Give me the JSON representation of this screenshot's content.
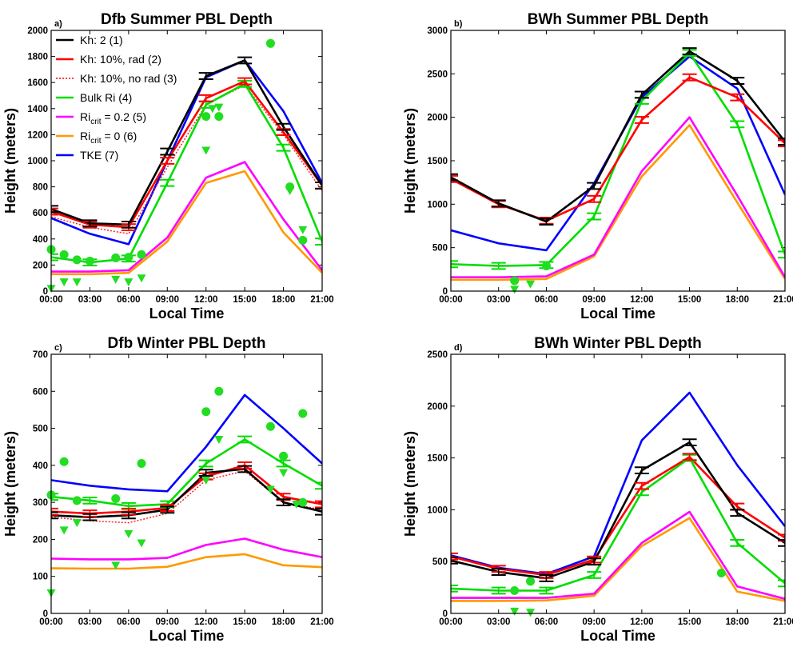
{
  "figure": {
    "xlabel": "Local Time",
    "ylabel": "Height (meters)"
  },
  "legend": [
    {
      "label": "Kh: 2 (1)",
      "color": "#000000",
      "style": "solid"
    },
    {
      "label": "Kh: 10%, rad (2)",
      "color": "#ff0000",
      "style": "solid"
    },
    {
      "label": "Kh: 10%, no rad (3)",
      "color": "#ff0000",
      "style": "dotted"
    },
    {
      "label": "Bulk Ri (4)",
      "color": "#00dd00",
      "style": "solid"
    },
    {
      "label": "Ri",
      "sub": "crit",
      "suffix": " = 0.2 (5)",
      "color": "#ff00ff",
      "style": "solid"
    },
    {
      "label": "Ri",
      "sub": "crit",
      "suffix": " = 0 (6)",
      "color": "#ff9900",
      "style": "solid"
    },
    {
      "label": "TKE (7)",
      "color": "#0000ff",
      "style": "solid"
    }
  ],
  "chart_data": [
    {
      "panel": "a)",
      "title": "Dfb Summer PBL Depth",
      "type": "line",
      "xticks": [
        "00:00",
        "03:00",
        "06:00",
        "09:00",
        "12:00",
        "15:00",
        "18:00",
        "21:00"
      ],
      "xlim": [
        0,
        21
      ],
      "ylim": [
        0,
        2000
      ],
      "yticks": [
        0,
        200,
        400,
        600,
        800,
        1000,
        1200,
        1400,
        1600,
        1800,
        2000
      ],
      "series": [
        {
          "id": "kh2",
          "x": [
            0,
            3,
            6,
            9,
            12,
            15,
            18,
            21
          ],
          "values": [
            630,
            520,
            510,
            1070,
            1650,
            1770,
            1260,
            810
          ],
          "err": true
        },
        {
          "id": "kh10rad",
          "x": [
            0,
            3,
            6,
            9,
            12,
            15,
            18,
            21
          ],
          "values": [
            610,
            510,
            490,
            1000,
            1480,
            1610,
            1220,
            810
          ],
          "err": true
        },
        {
          "id": "kh10norad",
          "x": [
            0,
            3,
            6,
            9,
            12,
            15,
            18,
            21
          ],
          "values": [
            570,
            490,
            440,
            950,
            1430,
            1580,
            1200,
            770
          ],
          "err": false
        },
        {
          "id": "bulkri",
          "x": [
            0,
            3,
            6,
            9,
            12,
            15,
            18,
            21
          ],
          "values": [
            260,
            220,
            250,
            830,
            1430,
            1590,
            1100,
            380
          ],
          "err": true
        },
        {
          "id": "ri02",
          "x": [
            0,
            3,
            6,
            9,
            12,
            15,
            18,
            21
          ],
          "values": [
            150,
            150,
            160,
            410,
            870,
            990,
            550,
            160
          ],
          "err": false
        },
        {
          "id": "ri0",
          "x": [
            0,
            3,
            6,
            9,
            12,
            15,
            18,
            21
          ],
          "values": [
            130,
            130,
            140,
            380,
            830,
            920,
            450,
            140
          ],
          "err": false
        },
        {
          "id": "tke",
          "x": [
            0,
            3,
            6,
            9,
            12,
            15,
            18,
            21
          ],
          "values": [
            560,
            440,
            360,
            1000,
            1640,
            1770,
            1380,
            830
          ],
          "err": false
        }
      ],
      "circles": [
        [
          0,
          320
        ],
        [
          1,
          280
        ],
        [
          2,
          240
        ],
        [
          3,
          230
        ],
        [
          5,
          255
        ],
        [
          6,
          260
        ],
        [
          7,
          280
        ],
        [
          12,
          1340
        ],
        [
          13,
          1340
        ],
        [
          17,
          1900
        ],
        [
          18.5,
          800
        ],
        [
          19.5,
          390
        ]
      ],
      "triangles": [
        [
          0,
          20
        ],
        [
          1,
          70
        ],
        [
          2,
          70
        ],
        [
          5,
          90
        ],
        [
          6,
          70
        ],
        [
          7,
          100
        ],
        [
          12,
          1080
        ],
        [
          12.5,
          1400
        ],
        [
          13,
          1410
        ],
        [
          18.5,
          770
        ],
        [
          19.5,
          470
        ]
      ]
    },
    {
      "panel": "b)",
      "title": "BWh Summer PBL Depth",
      "type": "line",
      "xticks": [
        "00:00",
        "03:00",
        "06:00",
        "09:00",
        "12:00",
        "15:00",
        "18:00",
        "21:00"
      ],
      "xlim": [
        0,
        21
      ],
      "ylim": [
        0,
        3000
      ],
      "yticks": [
        0,
        500,
        1000,
        1500,
        2000,
        2500,
        3000
      ],
      "series": [
        {
          "id": "kh2",
          "x": [
            0,
            3,
            6,
            9,
            12,
            15,
            18,
            21
          ],
          "values": [
            1310,
            1010,
            800,
            1210,
            2260,
            2760,
            2420,
            1720
          ],
          "err": true
        },
        {
          "id": "kh10rad",
          "x": [
            0,
            3,
            6,
            9,
            12,
            15,
            18,
            21
          ],
          "values": [
            1290,
            1000,
            810,
            1060,
            1970,
            2460,
            2230,
            1700
          ],
          "err": true
        },
        {
          "id": "bulkri",
          "x": [
            0,
            3,
            6,
            9,
            12,
            15,
            18,
            21
          ],
          "values": [
            310,
            290,
            300,
            860,
            2190,
            2740,
            1920,
            420
          ],
          "err": true
        },
        {
          "id": "ri02",
          "x": [
            0,
            3,
            6,
            9,
            12,
            15,
            18,
            21
          ],
          "values": [
            160,
            160,
            170,
            420,
            1380,
            2000,
            1100,
            160
          ],
          "err": false
        },
        {
          "id": "ri0",
          "x": [
            0,
            3,
            6,
            9,
            12,
            15,
            18,
            21
          ],
          "values": [
            130,
            130,
            140,
            400,
            1320,
            1910,
            1020,
            140
          ],
          "err": false
        },
        {
          "id": "tke",
          "x": [
            0,
            3,
            6,
            9,
            12,
            15,
            18,
            21
          ],
          "values": [
            700,
            550,
            470,
            1240,
            2230,
            2700,
            2330,
            1110
          ],
          "err": false
        }
      ],
      "circles": [
        [
          4,
          120
        ],
        [
          6,
          290
        ]
      ],
      "triangles": [
        [
          4,
          20
        ],
        [
          5,
          80
        ]
      ]
    },
    {
      "panel": "c)",
      "title": "Dfb Winter PBL Depth",
      "type": "line",
      "xticks": [
        "00:00",
        "03:00",
        "06:00",
        "09:00",
        "12:00",
        "15:00",
        "18:00",
        "21:00"
      ],
      "xlim": [
        0,
        21
      ],
      "ylim": [
        0,
        700
      ],
      "yticks": [
        0,
        100,
        200,
        300,
        400,
        500,
        600,
        700
      ],
      "series": [
        {
          "id": "kh2",
          "x": [
            0,
            3,
            6,
            9,
            12,
            15,
            18,
            21
          ],
          "values": [
            265,
            260,
            265,
            280,
            380,
            390,
            300,
            275
          ],
          "err": true
        },
        {
          "id": "kh10rad",
          "x": [
            0,
            3,
            6,
            9,
            12,
            15,
            18,
            21
          ],
          "values": [
            275,
            270,
            275,
            285,
            370,
            400,
            315,
            295
          ],
          "err": true
        },
        {
          "id": "kh10norad",
          "x": [
            0,
            3,
            6,
            9,
            12,
            15,
            18,
            21
          ],
          "values": [
            260,
            250,
            245,
            270,
            360,
            385,
            300,
            280
          ],
          "err": false
        },
        {
          "id": "bulkri",
          "x": [
            0,
            3,
            6,
            9,
            12,
            15,
            18,
            21
          ],
          "values": [
            315,
            305,
            290,
            295,
            405,
            470,
            405,
            345
          ],
          "err": true
        },
        {
          "id": "ri02",
          "x": [
            0,
            3,
            6,
            9,
            12,
            15,
            18,
            21
          ],
          "values": [
            148,
            146,
            146,
            150,
            185,
            202,
            172,
            152
          ],
          "err": false
        },
        {
          "id": "ri0",
          "x": [
            0,
            3,
            6,
            9,
            12,
            15,
            18,
            21
          ],
          "values": [
            122,
            121,
            121,
            126,
            152,
            160,
            130,
            125
          ],
          "err": false
        },
        {
          "id": "tke",
          "x": [
            0,
            3,
            6,
            9,
            12,
            15,
            18,
            21
          ],
          "values": [
            360,
            345,
            335,
            330,
            450,
            590,
            500,
            405
          ],
          "err": false
        }
      ],
      "circles": [
        [
          0,
          320
        ],
        [
          1,
          410
        ],
        [
          2,
          305
        ],
        [
          5,
          310
        ],
        [
          7,
          405
        ],
        [
          12,
          545
        ],
        [
          13,
          600
        ],
        [
          17,
          505
        ],
        [
          18,
          425
        ],
        [
          19.5,
          540
        ],
        [
          19.5,
          300
        ]
      ],
      "triangles": [
        [
          0,
          55
        ],
        [
          1,
          225
        ],
        [
          2,
          245
        ],
        [
          5,
          130
        ],
        [
          6,
          215
        ],
        [
          7,
          190
        ],
        [
          12,
          360
        ],
        [
          13,
          470
        ],
        [
          17,
          335
        ],
        [
          18,
          380
        ],
        [
          19,
          295
        ]
      ]
    },
    {
      "panel": "d)",
      "title": "BWh Winter PBL Depth",
      "type": "line",
      "xticks": [
        "00:00",
        "03:00",
        "06:00",
        "09:00",
        "12:00",
        "15:00",
        "18:00",
        "21:00"
      ],
      "xlim": [
        0,
        21
      ],
      "ylim": [
        0,
        2500
      ],
      "yticks": [
        0,
        500,
        1000,
        1500,
        2000,
        2500
      ],
      "series": [
        {
          "id": "kh2",
          "x": [
            0,
            3,
            6,
            9,
            12,
            15,
            18,
            21
          ],
          "values": [
            510,
            400,
            340,
            500,
            1380,
            1650,
            970,
            680
          ],
          "err": true
        },
        {
          "id": "kh10rad",
          "x": [
            0,
            3,
            6,
            9,
            12,
            15,
            18,
            21
          ],
          "values": [
            550,
            430,
            370,
            520,
            1230,
            1510,
            1030,
            730
          ],
          "err": true
        },
        {
          "id": "bulkri",
          "x": [
            0,
            3,
            6,
            9,
            12,
            15,
            18,
            21
          ],
          "values": [
            240,
            220,
            220,
            370,
            1170,
            1500,
            680,
            290
          ],
          "err": true
        },
        {
          "id": "ri02",
          "x": [
            0,
            3,
            6,
            9,
            12,
            15,
            18,
            21
          ],
          "values": [
            150,
            150,
            150,
            190,
            680,
            980,
            260,
            140
          ],
          "err": false
        },
        {
          "id": "ri0",
          "x": [
            0,
            3,
            6,
            9,
            12,
            15,
            18,
            21
          ],
          "values": [
            120,
            120,
            125,
            170,
            650,
            920,
            210,
            120
          ],
          "err": false
        },
        {
          "id": "tke",
          "x": [
            0,
            3,
            6,
            9,
            12,
            15,
            18,
            21
          ],
          "values": [
            560,
            440,
            380,
            550,
            1670,
            2130,
            1430,
            840
          ],
          "err": false
        }
      ],
      "circles": [
        [
          4,
          220
        ],
        [
          5,
          310
        ],
        [
          17,
          390
        ]
      ],
      "triangles": [
        [
          4,
          20
        ],
        [
          5,
          10
        ]
      ]
    }
  ]
}
